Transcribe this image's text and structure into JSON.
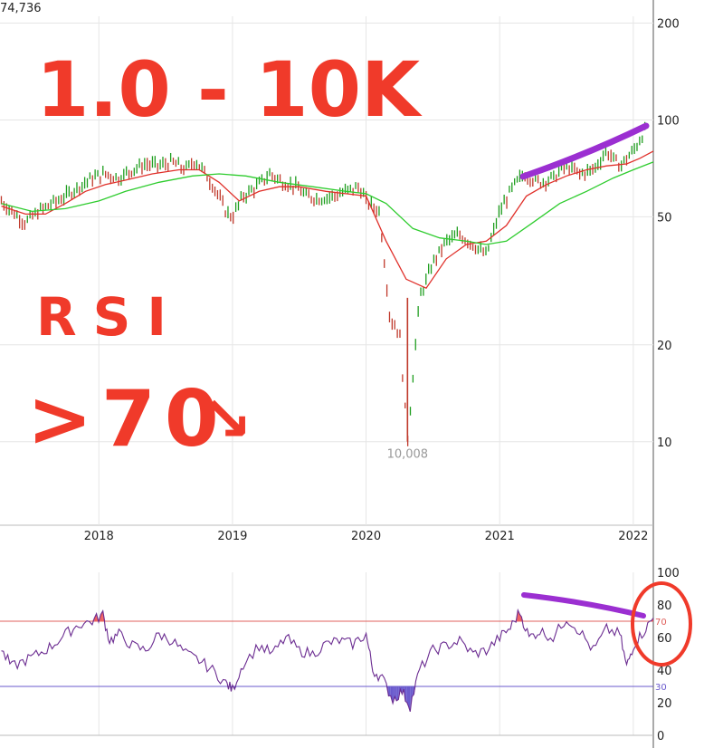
{
  "header": {
    "price_label": "74,736"
  },
  "chart_data": [
    {
      "type": "line",
      "subtype": "ohlc-bars",
      "y_scale": "log",
      "ylim": [
        5.5,
        210
      ],
      "y_ticks": [
        {
          "label": "200",
          "value": 200
        },
        {
          "label": "100",
          "value": 100
        },
        {
          "label": "50",
          "value": 50
        },
        {
          "label": "20",
          "value": 20
        },
        {
          "label": "10",
          "value": 10
        }
      ],
      "x_ticks": [
        {
          "label": "2018",
          "value": 2018.0
        },
        {
          "label": "2019",
          "value": 2019.0
        },
        {
          "label": "2020",
          "value": 2020.0
        },
        {
          "label": "2021",
          "value": 2021.0
        },
        {
          "label": "2022",
          "value": 2022.0
        }
      ],
      "xlim": [
        2017.26,
        2022.15
      ],
      "min_annotation": {
        "label": "10,008",
        "x": 2020.31,
        "value": 10.008
      },
      "series": [
        {
          "role": "price",
          "color": "#1f9e1f",
          "down_color": "#c0392b",
          "points": [
            [
              2017.27,
              56
            ],
            [
              2017.35,
              52
            ],
            [
              2017.45,
              48
            ],
            [
              2017.55,
              52
            ],
            [
              2017.65,
              55
            ],
            [
              2017.75,
              58
            ],
            [
              2017.85,
              62
            ],
            [
              2017.95,
              66
            ],
            [
              2018.05,
              68
            ],
            [
              2018.15,
              66
            ],
            [
              2018.25,
              70
            ],
            [
              2018.35,
              73
            ],
            [
              2018.45,
              72
            ],
            [
              2018.55,
              74
            ],
            [
              2018.65,
              70
            ],
            [
              2018.72,
              75
            ],
            [
              2018.8,
              68
            ],
            [
              2018.88,
              60
            ],
            [
              2018.95,
              52
            ],
            [
              2019.0,
              50
            ],
            [
              2019.08,
              58
            ],
            [
              2019.18,
              62
            ],
            [
              2019.28,
              68
            ],
            [
              2019.38,
              64
            ],
            [
              2019.48,
              62
            ],
            [
              2019.55,
              58
            ],
            [
              2019.65,
              57
            ],
            [
              2019.75,
              58
            ],
            [
              2019.85,
              60
            ],
            [
              2019.95,
              62
            ],
            [
              2020.0,
              56
            ],
            [
              2020.1,
              52
            ],
            [
              2020.18,
              24
            ],
            [
              2020.25,
              22
            ],
            [
              2020.31,
              10.0
            ],
            [
              2020.4,
              28
            ],
            [
              2020.5,
              36
            ],
            [
              2020.6,
              42
            ],
            [
              2020.7,
              44
            ],
            [
              2020.8,
              41
            ],
            [
              2020.9,
              38
            ],
            [
              2021.0,
              52
            ],
            [
              2021.1,
              62
            ],
            [
              2021.18,
              68
            ],
            [
              2021.3,
              64
            ],
            [
              2021.4,
              66
            ],
            [
              2021.5,
              72
            ],
            [
              2021.6,
              68
            ],
            [
              2021.7,
              70
            ],
            [
              2021.8,
              80
            ],
            [
              2021.9,
              72
            ],
            [
              2022.0,
              80
            ],
            [
              2022.1,
              95
            ]
          ]
        },
        {
          "role": "ma-short",
          "color": "#e0302a",
          "points": [
            [
              2017.27,
              54
            ],
            [
              2017.45,
              51
            ],
            [
              2017.6,
              51
            ],
            [
              2017.75,
              55
            ],
            [
              2017.9,
              60
            ],
            [
              2018.05,
              63
            ],
            [
              2018.2,
              65
            ],
            [
              2018.4,
              68
            ],
            [
              2018.6,
              70
            ],
            [
              2018.75,
              70
            ],
            [
              2018.9,
              64
            ],
            [
              2019.05,
              56
            ],
            [
              2019.2,
              60
            ],
            [
              2019.35,
              62
            ],
            [
              2019.5,
              62
            ],
            [
              2019.7,
              60
            ],
            [
              2019.85,
              59
            ],
            [
              2020.0,
              58
            ],
            [
              2020.15,
              42
            ],
            [
              2020.3,
              32
            ],
            [
              2020.45,
              30
            ],
            [
              2020.6,
              37
            ],
            [
              2020.75,
              41
            ],
            [
              2020.9,
              42
            ],
            [
              2021.05,
              47
            ],
            [
              2021.2,
              58
            ],
            [
              2021.35,
              63
            ],
            [
              2021.5,
              67
            ],
            [
              2021.65,
              70
            ],
            [
              2021.8,
              72
            ],
            [
              2021.95,
              73
            ],
            [
              2022.05,
              76
            ],
            [
              2022.15,
              80
            ]
          ]
        },
        {
          "role": "ma-long",
          "color": "#2ecc2e",
          "points": [
            [
              2017.27,
              55
            ],
            [
              2017.5,
              52
            ],
            [
              2017.75,
              53
            ],
            [
              2018.0,
              56
            ],
            [
              2018.2,
              60
            ],
            [
              2018.45,
              64
            ],
            [
              2018.7,
              67
            ],
            [
              2018.9,
              68
            ],
            [
              2019.1,
              67
            ],
            [
              2019.35,
              64
            ],
            [
              2019.6,
              62
            ],
            [
              2019.85,
              60
            ],
            [
              2020.0,
              59
            ],
            [
              2020.15,
              55
            ],
            [
              2020.35,
              46
            ],
            [
              2020.55,
              43
            ],
            [
              2020.75,
              42
            ],
            [
              2020.9,
              41
            ],
            [
              2021.05,
              42
            ],
            [
              2021.25,
              48
            ],
            [
              2021.45,
              55
            ],
            [
              2021.65,
              60
            ],
            [
              2021.85,
              66
            ],
            [
              2022.0,
              70
            ],
            [
              2022.15,
              74
            ]
          ]
        }
      ]
    },
    {
      "type": "line",
      "title": "RSI",
      "ylim": [
        0,
        100
      ],
      "y_ticks": [
        {
          "label": "100",
          "value": 100
        },
        {
          "label": "80",
          "value": 80
        },
        {
          "label": "60",
          "value": 60
        },
        {
          "label": "40",
          "value": 40
        },
        {
          "label": "20",
          "value": 20
        },
        {
          "label": "0",
          "value": 0
        }
      ],
      "levels": [
        {
          "label": "70",
          "value": 70,
          "color": "#e0605c"
        },
        {
          "label": "30",
          "value": 30,
          "color": "#6a5acd"
        }
      ],
      "xlim": [
        2017.26,
        2022.15
      ],
      "series": [
        {
          "name": "RSI",
          "color": "#6b2c91",
          "points": [
            [
              2017.27,
              52
            ],
            [
              2017.35,
              42
            ],
            [
              2017.45,
              46
            ],
            [
              2017.55,
              50
            ],
            [
              2017.65,
              55
            ],
            [
              2017.75,
              62
            ],
            [
              2017.85,
              68
            ],
            [
              2017.95,
              70
            ],
            [
              2018.03,
              74
            ],
            [
              2018.08,
              58
            ],
            [
              2018.15,
              62
            ],
            [
              2018.25,
              55
            ],
            [
              2018.35,
              52
            ],
            [
              2018.45,
              62
            ],
            [
              2018.55,
              58
            ],
            [
              2018.65,
              50
            ],
            [
              2018.75,
              46
            ],
            [
              2018.85,
              40
            ],
            [
              2018.95,
              32
            ],
            [
              2019.0,
              28
            ],
            [
              2019.08,
              44
            ],
            [
              2019.2,
              55
            ],
            [
              2019.3,
              50
            ],
            [
              2019.4,
              60
            ],
            [
              2019.5,
              52
            ],
            [
              2019.6,
              50
            ],
            [
              2019.7,
              56
            ],
            [
              2019.8,
              58
            ],
            [
              2019.9,
              56
            ],
            [
              2020.0,
              62
            ],
            [
              2020.05,
              40
            ],
            [
              2020.12,
              35
            ],
            [
              2020.2,
              22
            ],
            [
              2020.27,
              27
            ],
            [
              2020.33,
              18
            ],
            [
              2020.4,
              40
            ],
            [
              2020.5,
              52
            ],
            [
              2020.6,
              55
            ],
            [
              2020.7,
              58
            ],
            [
              2020.8,
              50
            ],
            [
              2020.9,
              52
            ],
            [
              2021.0,
              60
            ],
            [
              2021.08,
              66
            ],
            [
              2021.15,
              76
            ],
            [
              2021.22,
              60
            ],
            [
              2021.3,
              64
            ],
            [
              2021.4,
              60
            ],
            [
              2021.5,
              72
            ],
            [
              2021.6,
              64
            ],
            [
              2021.7,
              52
            ],
            [
              2021.8,
              65
            ],
            [
              2021.9,
              62
            ],
            [
              2021.95,
              42
            ],
            [
              2022.0,
              55
            ],
            [
              2022.08,
              64
            ],
            [
              2022.15,
              72
            ]
          ]
        }
      ]
    }
  ],
  "annotations": {
    "big_title": "1.0 - 10K",
    "rsi_label": "RSI",
    "rsi_condition": ">70",
    "arrow": "↘"
  },
  "colors": {
    "grid": "#e6e6e6",
    "axis": "#555555",
    "handwriting": "#f03a2a",
    "trendline": "#9b2fd1"
  }
}
